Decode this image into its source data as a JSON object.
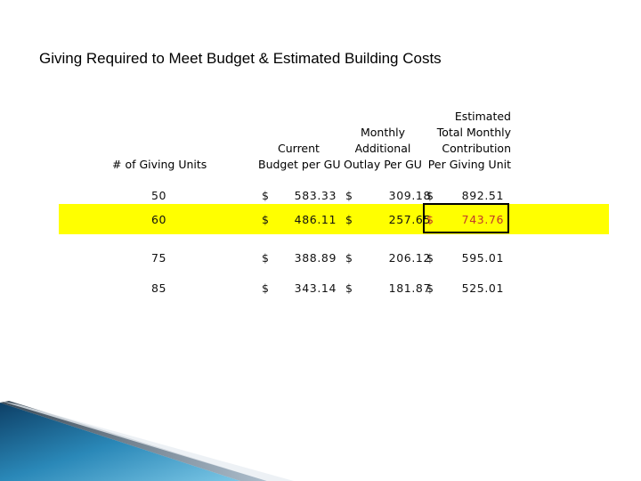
{
  "title": "Giving Required to Meet Budget & Estimated Building Costs",
  "headers": {
    "units": "# of Giving Units",
    "budget_line1": "Current",
    "budget_line2": "Budget per GU",
    "outlay_line1": "Monthly",
    "outlay_line2": "Additional",
    "outlay_line3": "Outlay Per GU",
    "est_line1": "Estimated",
    "est_line2": "Total Monthly",
    "est_line3": "Contribution",
    "est_line4": "Per Giving Unit"
  },
  "rows": [
    {
      "units": "50",
      "d1": "$",
      "budget": "583.33",
      "d2": "$",
      "outlay": "309.18",
      "d3": "$",
      "total": "892.51"
    },
    {
      "units": "60",
      "d1": "$",
      "budget": "486.11",
      "d2": "$",
      "outlay": "257.65",
      "d3": "$",
      "total": "743.76"
    },
    {
      "units": "75",
      "d1": "$",
      "budget": "388.89",
      "d2": "$",
      "outlay": "206.12",
      "d3": "$",
      "total": "595.01"
    },
    {
      "units": "85",
      "d1": "$",
      "budget": "343.14",
      "d2": "$",
      "outlay": "181.87",
      "d3": "$",
      "total": "525.01"
    }
  ],
  "colors": {
    "highlight": "#ffff00",
    "emphasis_text": "#c0392b",
    "decor_blue": "#1f6f9a"
  }
}
